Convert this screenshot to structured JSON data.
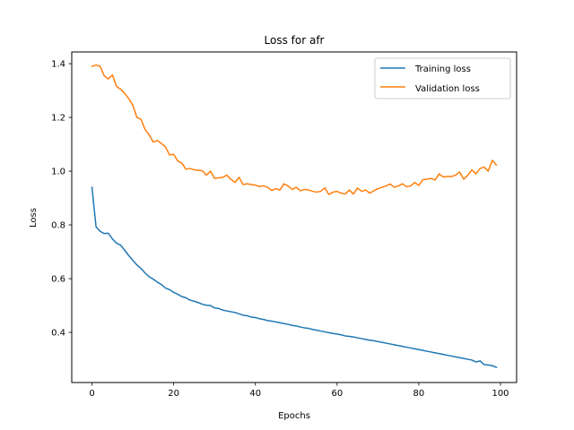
{
  "chart_data": {
    "type": "line",
    "title": "Loss for afr",
    "xlabel": "Epochs",
    "ylabel": "Loss",
    "xlim": [
      -4.95,
      103.95
    ],
    "ylim": [
      0.2135,
      1.4435
    ],
    "xticks": [
      0,
      20,
      40,
      60,
      80,
      100
    ],
    "yticks": [
      0.4,
      0.6,
      0.8,
      1.0,
      1.2,
      1.4
    ],
    "ytick_labels": [
      "0.4",
      "0.6",
      "0.8",
      "1.0",
      "1.2",
      "1.4"
    ],
    "grid": false,
    "legend_position": "top-right",
    "series": [
      {
        "name": "Training loss",
        "color": "#1f77b4",
        "x": [
          0,
          1,
          2,
          3,
          4,
          5,
          6,
          7,
          8,
          9,
          10,
          11,
          12,
          13,
          14,
          15,
          16,
          17,
          18,
          19,
          20,
          21,
          22,
          23,
          24,
          25,
          26,
          27,
          28,
          29,
          30,
          31,
          32,
          33,
          34,
          35,
          36,
          37,
          38,
          39,
          40,
          41,
          42,
          43,
          44,
          45,
          46,
          47,
          48,
          49,
          50,
          51,
          52,
          53,
          54,
          55,
          56,
          57,
          58,
          59,
          60,
          61,
          62,
          63,
          64,
          65,
          66,
          67,
          68,
          69,
          70,
          71,
          72,
          73,
          74,
          75,
          76,
          77,
          78,
          79,
          80,
          81,
          82,
          83,
          84,
          85,
          86,
          87,
          88,
          89,
          90,
          91,
          92,
          93,
          94,
          95,
          96,
          97,
          98,
          99
        ],
        "values": [
          0.94,
          0.793,
          0.776,
          0.768,
          0.769,
          0.748,
          0.732,
          0.725,
          0.706,
          0.686,
          0.668,
          0.651,
          0.638,
          0.621,
          0.607,
          0.598,
          0.587,
          0.578,
          0.565,
          0.559,
          0.549,
          0.542,
          0.533,
          0.529,
          0.52,
          0.516,
          0.511,
          0.505,
          0.501,
          0.5,
          0.491,
          0.489,
          0.483,
          0.48,
          0.477,
          0.474,
          0.469,
          0.464,
          0.462,
          0.457,
          0.455,
          0.451,
          0.448,
          0.444,
          0.442,
          0.439,
          0.436,
          0.433,
          0.43,
          0.426,
          0.424,
          0.42,
          0.417,
          0.415,
          0.411,
          0.408,
          0.405,
          0.402,
          0.399,
          0.396,
          0.394,
          0.391,
          0.387,
          0.385,
          0.383,
          0.38,
          0.377,
          0.374,
          0.371,
          0.369,
          0.366,
          0.363,
          0.36,
          0.357,
          0.354,
          0.351,
          0.348,
          0.345,
          0.342,
          0.339,
          0.336,
          0.333,
          0.33,
          0.327,
          0.324,
          0.321,
          0.318,
          0.315,
          0.312,
          0.309,
          0.306,
          0.303,
          0.3,
          0.297,
          0.29,
          0.294,
          0.28,
          0.279,
          0.276,
          0.27
        ]
      },
      {
        "name": "Validation loss",
        "color": "#ff7f0e",
        "x": [
          0,
          1,
          2,
          3,
          4,
          5,
          6,
          7,
          8,
          9,
          10,
          11,
          12,
          13,
          14,
          15,
          16,
          17,
          18,
          19,
          20,
          21,
          22,
          23,
          24,
          25,
          26,
          27,
          28,
          29,
          30,
          31,
          32,
          33,
          34,
          35,
          36,
          37,
          38,
          39,
          40,
          41,
          42,
          43,
          44,
          45,
          46,
          47,
          48,
          49,
          50,
          51,
          52,
          53,
          54,
          55,
          56,
          57,
          58,
          59,
          60,
          61,
          62,
          63,
          64,
          65,
          66,
          67,
          68,
          69,
          70,
          71,
          72,
          73,
          74,
          75,
          76,
          77,
          78,
          79,
          80,
          81,
          82,
          83,
          84,
          85,
          86,
          87,
          88,
          89,
          90,
          91,
          92,
          93,
          94,
          95,
          96,
          97,
          98,
          99
        ],
        "values": [
          1.39,
          1.395,
          1.39,
          1.355,
          1.343,
          1.358,
          1.315,
          1.305,
          1.29,
          1.27,
          1.245,
          1.2,
          1.193,
          1.155,
          1.135,
          1.108,
          1.114,
          1.103,
          1.09,
          1.06,
          1.063,
          1.038,
          1.03,
          1.007,
          1.01,
          1.005,
          1.003,
          1.002,
          0.985,
          1.0,
          0.973,
          0.975,
          0.977,
          0.985,
          0.97,
          0.958,
          0.977,
          0.95,
          0.953,
          0.95,
          0.948,
          0.943,
          0.945,
          0.94,
          0.928,
          0.935,
          0.93,
          0.953,
          0.945,
          0.932,
          0.94,
          0.927,
          0.932,
          0.93,
          0.925,
          0.922,
          0.925,
          0.938,
          0.913,
          0.922,
          0.925,
          0.918,
          0.915,
          0.93,
          0.915,
          0.937,
          0.925,
          0.93,
          0.918,
          0.927,
          0.935,
          0.94,
          0.945,
          0.952,
          0.94,
          0.945,
          0.953,
          0.942,
          0.945,
          0.958,
          0.947,
          0.968,
          0.97,
          0.973,
          0.967,
          0.99,
          0.978,
          0.98,
          0.98,
          0.985,
          0.997,
          0.97,
          0.985,
          1.005,
          0.99,
          1.01,
          1.015,
          1.0,
          1.04,
          1.023
        ]
      }
    ]
  }
}
